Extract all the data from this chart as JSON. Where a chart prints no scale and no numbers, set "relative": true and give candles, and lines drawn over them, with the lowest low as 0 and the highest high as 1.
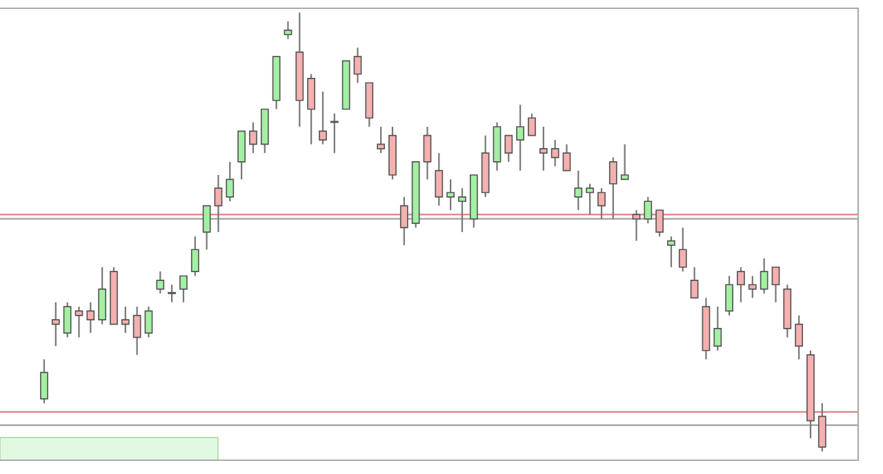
{
  "chart_data": {
    "type": "candlestick",
    "relative": true,
    "categories": [
      null,
      null,
      null,
      null,
      null,
      null,
      null,
      null,
      null,
      null,
      null,
      null,
      null,
      null,
      null,
      null,
      null,
      null,
      null,
      null,
      null,
      null,
      null,
      null,
      null,
      null,
      null,
      null,
      null,
      null,
      null,
      null,
      null,
      null,
      null,
      null,
      null,
      null,
      null,
      null,
      null,
      null,
      null,
      null,
      null,
      null,
      null,
      null,
      null,
      null,
      null,
      null,
      null,
      null,
      null,
      null,
      null,
      null,
      null,
      null,
      null,
      null,
      null,
      null,
      null,
      null,
      null,
      null
    ],
    "ohlc": [
      [
        0.12,
        0.21,
        0.11,
        0.18
      ],
      [
        0.3,
        0.34,
        0.24,
        0.29
      ],
      [
        0.27,
        0.34,
        0.26,
        0.33
      ],
      [
        0.32,
        0.33,
        0.26,
        0.31
      ],
      [
        0.32,
        0.34,
        0.27,
        0.3
      ],
      [
        0.3,
        0.42,
        0.29,
        0.37
      ],
      [
        0.41,
        0.42,
        0.29,
        0.29
      ],
      [
        0.3,
        0.33,
        0.27,
        0.29
      ],
      [
        0.31,
        0.33,
        0.22,
        0.26
      ],
      [
        0.27,
        0.33,
        0.26,
        0.32
      ],
      [
        0.37,
        0.41,
        0.36,
        0.39
      ],
      [
        0.36,
        0.38,
        0.34,
        0.36
      ],
      [
        0.37,
        0.4,
        0.34,
        0.4
      ],
      [
        0.41,
        0.49,
        0.4,
        0.46
      ],
      [
        0.5,
        0.56,
        0.46,
        0.56
      ],
      [
        0.6,
        0.63,
        0.5,
        0.56
      ],
      [
        0.58,
        0.66,
        0.57,
        0.62
      ],
      [
        0.66,
        0.73,
        0.62,
        0.73
      ],
      [
        0.73,
        0.75,
        0.68,
        0.7
      ],
      [
        0.7,
        0.78,
        0.68,
        0.78
      ],
      [
        0.8,
        0.9,
        0.78,
        0.9
      ],
      [
        0.95,
        0.98,
        0.94,
        0.96
      ],
      [
        0.91,
        1.0,
        0.74,
        0.8
      ],
      [
        0.85,
        0.86,
        0.7,
        0.78
      ],
      [
        0.73,
        0.82,
        0.7,
        0.71
      ],
      [
        0.75,
        0.77,
        0.68,
        0.75
      ],
      [
        0.78,
        0.89,
        0.78,
        0.89
      ],
      [
        0.9,
        0.92,
        0.84,
        0.86
      ],
      [
        0.84,
        0.84,
        0.74,
        0.76
      ],
      [
        0.7,
        0.74,
        0.68,
        0.69
      ],
      [
        0.72,
        0.74,
        0.62,
        0.63
      ],
      [
        0.56,
        0.58,
        0.47,
        0.51
      ],
      [
        0.52,
        0.66,
        0.51,
        0.66
      ],
      [
        0.72,
        0.74,
        0.62,
        0.66
      ],
      [
        0.64,
        0.68,
        0.56,
        0.58
      ],
      [
        0.58,
        0.62,
        0.55,
        0.59
      ],
      [
        0.57,
        0.6,
        0.5,
        0.58
      ],
      [
        0.53,
        0.63,
        0.51,
        0.63
      ],
      [
        0.68,
        0.72,
        0.58,
        0.59
      ],
      [
        0.66,
        0.75,
        0.64,
        0.74
      ],
      [
        0.72,
        0.72,
        0.66,
        0.68
      ],
      [
        0.71,
        0.79,
        0.64,
        0.74
      ],
      [
        0.76,
        0.77,
        0.72,
        0.72
      ],
      [
        0.69,
        0.74,
        0.64,
        0.68
      ],
      [
        0.69,
        0.71,
        0.65,
        0.67
      ],
      [
        0.68,
        0.7,
        0.64,
        0.64
      ],
      [
        0.58,
        0.64,
        0.55,
        0.6
      ],
      [
        0.59,
        0.61,
        0.54,
        0.6
      ],
      [
        0.59,
        0.6,
        0.53,
        0.56
      ],
      [
        0.66,
        0.67,
        0.53,
        0.61
      ],
      [
        0.62,
        0.7,
        0.62,
        0.63
      ],
      [
        0.54,
        0.55,
        0.48,
        0.53
      ],
      [
        0.53,
        0.58,
        0.52,
        0.57
      ],
      [
        0.55,
        0.55,
        0.49,
        0.5
      ],
      [
        0.47,
        0.49,
        0.42,
        0.48
      ],
      [
        0.46,
        0.51,
        0.41,
        0.42
      ],
      [
        0.39,
        0.42,
        0.35,
        0.35
      ],
      [
        0.33,
        0.35,
        0.21,
        0.23
      ],
      [
        0.24,
        0.33,
        0.23,
        0.28
      ],
      [
        0.32,
        0.4,
        0.31,
        0.38
      ],
      [
        0.41,
        0.42,
        0.34,
        0.38
      ],
      [
        0.38,
        0.4,
        0.35,
        0.37
      ],
      [
        0.37,
        0.44,
        0.36,
        0.41
      ],
      [
        0.42,
        0.42,
        0.34,
        0.38
      ],
      [
        0.37,
        0.38,
        0.26,
        0.28
      ],
      [
        0.29,
        0.31,
        0.21,
        0.24
      ],
      [
        0.22,
        0.23,
        0.03,
        0.07
      ],
      [
        0.08,
        0.11,
        0.0,
        0.01
      ]
    ],
    "colors": [
      "#a3f0a3",
      "#f5b0b0",
      "#a3f0a3",
      "#f5b0b0",
      "#f5b0b0",
      "#a3f0a3",
      "#f5b0b0",
      "#f5b0b0",
      "#f5b0b0",
      "#a3f0a3",
      "#a3f0a3",
      "#f5b0b0",
      "#a3f0a3",
      "#a3f0a3",
      "#a3f0a3",
      "#f5b0b0",
      "#a3f0a3",
      "#a3f0a3",
      "#f5b0b0",
      "#a3f0a3",
      "#a3f0a3",
      "#a3f0a3",
      "#f5b0b0",
      "#f5b0b0",
      "#f5b0b0",
      "#f5b0b0",
      "#a3f0a3",
      "#f5b0b0",
      "#f5b0b0",
      "#f5b0b0",
      "#f5b0b0",
      "#f5b0b0",
      "#a3f0a3",
      "#f5b0b0",
      "#f5b0b0",
      "#a3f0a3",
      "#a3f0a3",
      "#a3f0a3",
      "#f5b0b0",
      "#a3f0a3",
      "#f5b0b0",
      "#a3f0a3",
      "#f5b0b0",
      "#f5b0b0",
      "#f5b0b0",
      "#f5b0b0",
      "#a3f0a3",
      "#a3f0a3",
      "#f5b0b0",
      "#f5b0b0",
      "#a3f0a3",
      "#f5b0b0",
      "#a3f0a3",
      "#f5b0b0",
      "#a3f0a3",
      "#f5b0b0",
      "#f5b0b0",
      "#f5b0b0",
      "#a3f0a3",
      "#a3f0a3",
      "#f5b0b0",
      "#f5b0b0",
      "#a3f0a3",
      "#f5b0b0",
      "#f5b0b0",
      "#f5b0b0",
      "#f5b0b0",
      "#f5b0b0"
    ],
    "ref_lines": [
      {
        "axis": "y",
        "value": 0.54,
        "color": "#e08080"
      },
      {
        "axis": "y",
        "value": 0.53,
        "color": "#a0a0a0"
      },
      {
        "axis": "y",
        "value": 0.09,
        "color": "#e08080"
      },
      {
        "axis": "y",
        "value": 0.06,
        "color": "#a0a0a0"
      }
    ],
    "grid": false
  }
}
